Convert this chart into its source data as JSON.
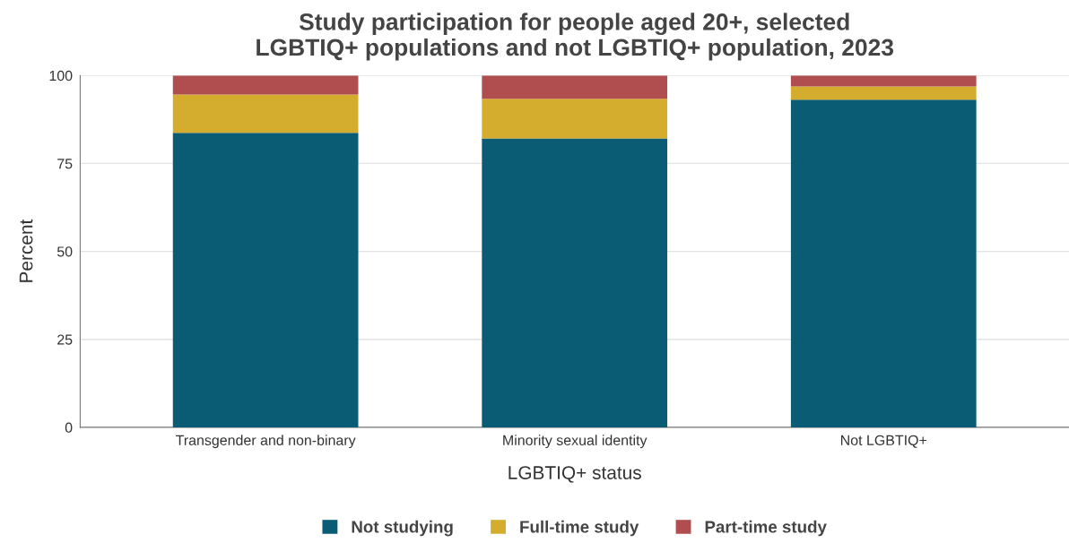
{
  "chart_data": {
    "type": "bar",
    "title": "Study participation for people aged 20+, selected\nLGBTIQ+ populations and not LGBTIQ+ population, 2023",
    "xlabel": "LGBTIQ+ status",
    "ylabel": "Percent",
    "categories": [
      "Transgender and non-binary",
      "Minority sexual identity",
      "Not LGBTIQ+"
    ],
    "stacked": true,
    "series": [
      {
        "name": "Not studying",
        "color": "#0a5c75",
        "values": [
          83.7,
          82.1,
          93.1
        ]
      },
      {
        "name": "Full-time study",
        "color": "#d4ac2e",
        "values": [
          10.9,
          11.3,
          3.8
        ]
      },
      {
        "name": "Part-time study",
        "color": "#b04e4f",
        "values": [
          5.4,
          6.6,
          3.1
        ]
      }
    ],
    "ylim": [
      0,
      100
    ],
    "yticks": [
      0,
      25,
      50,
      75,
      100
    ],
    "grid": "y",
    "legend": "bottom"
  }
}
